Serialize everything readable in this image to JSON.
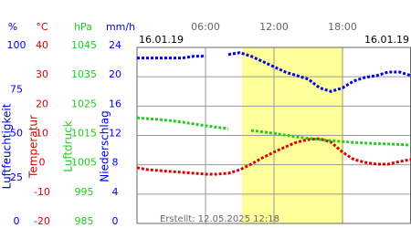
{
  "chart_data": {
    "type": "line",
    "date_left": "16.01.19",
    "date_right": "16.01.19",
    "footer": "Erstellt: 12.05.2025 12:18",
    "xlim": [
      0,
      24
    ],
    "xticks": [
      {
        "value": 6,
        "label": "06:00"
      },
      {
        "value": 12,
        "label": "12:00"
      },
      {
        "value": 18,
        "label": "18:00"
      }
    ],
    "daylight": [
      9.2,
      18.1
    ],
    "daylight_color": "#ffff99",
    "grid": true,
    "axes": [
      {
        "unit": "%",
        "label": "Luftfeuchtigkeit",
        "color": "#0000ee",
        "lim": [
          0,
          100
        ],
        "ticks": [
          100,
          75,
          50,
          25,
          0
        ]
      },
      {
        "unit": "°C",
        "label": "Temperatur",
        "color": "#dd0000",
        "lim": [
          -20,
          40
        ],
        "ticks": [
          40,
          30,
          20,
          10,
          0,
          -10,
          -20
        ]
      },
      {
        "unit": "hPa",
        "label": "Luftdruck",
        "color": "#22cc22",
        "lim": [
          985,
          1045
        ],
        "ticks": [
          1045,
          1035,
          1025,
          1015,
          1005,
          995,
          985
        ]
      },
      {
        "unit": "mm/h",
        "label": "Niederschlag",
        "color": "#0000ee",
        "lim": [
          0,
          24
        ],
        "ticks": [
          24,
          20,
          16,
          12,
          8,
          4,
          0
        ]
      }
    ],
    "x": [
      0,
      1,
      2,
      3,
      4,
      5,
      6,
      7,
      8,
      9,
      10,
      11,
      12,
      13,
      14,
      15,
      16,
      17,
      18,
      19,
      20,
      21,
      22,
      23,
      24
    ],
    "series": [
      {
        "axis": 0,
        "color": "#0000ee",
        "values": [
          94,
          94,
          94,
          94,
          94,
          95,
          95,
          null,
          96,
          97,
          95,
          92,
          89,
          86,
          84,
          82,
          77,
          75,
          77,
          81,
          83,
          84,
          86,
          86,
          84
        ]
      },
      {
        "axis": 1,
        "color": "#dd0000",
        "values": [
          -1,
          -1.7,
          -2,
          -2.3,
          -2.6,
          -2.9,
          -3.2,
          -3.2,
          -2.9,
          -1.7,
          0.2,
          2.4,
          4.3,
          6.1,
          7.7,
          8.6,
          8.9,
          7.7,
          4.3,
          1.8,
          0.8,
          0.2,
          0.2,
          1.1,
          1.8
        ]
      },
      {
        "axis": 2,
        "color": "#22cc22",
        "values": [
          1021,
          1020.7,
          1020.4,
          1020,
          1019.5,
          1018.9,
          1018.3,
          1017.8,
          1017.3,
          null,
          1016.7,
          1016.2,
          1015.7,
          1015.1,
          1014.5,
          1014,
          1013.6,
          1013.2,
          1012.9,
          1012.6,
          1012.4,
          1012.2,
          1012.1,
          1011.9,
          1011.7
        ]
      }
    ]
  }
}
